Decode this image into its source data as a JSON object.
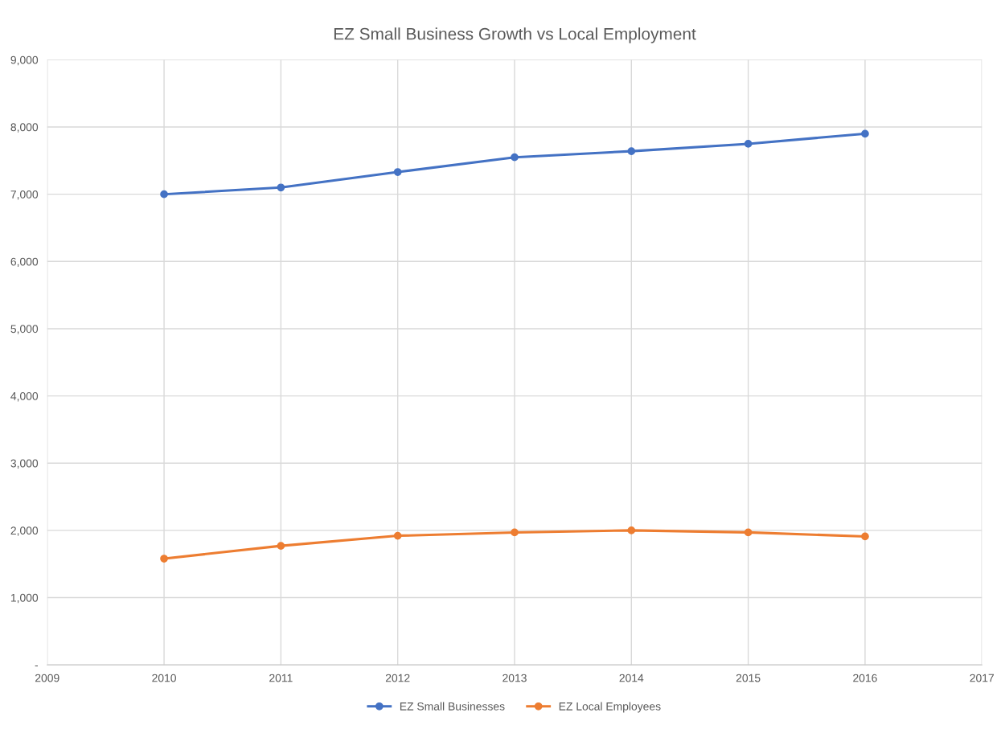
{
  "chart_data": {
    "type": "line",
    "title": "EZ Small Business Growth vs Local Employment",
    "x": [
      2010,
      2011,
      2012,
      2013,
      2014,
      2015,
      2016
    ],
    "series": [
      {
        "name": "EZ Small Businesses",
        "color": "#4472c4",
        "values": [
          7000,
          7100,
          7330,
          7550,
          7640,
          7750,
          7900
        ]
      },
      {
        "name": "EZ Local Employees",
        "color": "#ed7d31",
        "values": [
          1580,
          1770,
          1920,
          1970,
          2000,
          1970,
          1910
        ]
      }
    ],
    "xlim": [
      2009,
      2017
    ],
    "xticks": [
      2009,
      2010,
      2011,
      2012,
      2013,
      2014,
      2015,
      2016,
      2017
    ],
    "ylim": [
      0,
      9000
    ],
    "yticks": [
      {
        "value": 0,
        "label": "-"
      },
      {
        "value": 1000,
        "label": "1,000"
      },
      {
        "value": 2000,
        "label": "2,000"
      },
      {
        "value": 3000,
        "label": "3,000"
      },
      {
        "value": 4000,
        "label": "4,000"
      },
      {
        "value": 5000,
        "label": "5,000"
      },
      {
        "value": 6000,
        "label": "6,000"
      },
      {
        "value": 7000,
        "label": "7,000"
      },
      {
        "value": 8000,
        "label": "8,000"
      },
      {
        "value": 9000,
        "label": "9,000"
      }
    ],
    "grid": true,
    "legend": "bottom",
    "marker": "circle",
    "line_style": "solid"
  }
}
